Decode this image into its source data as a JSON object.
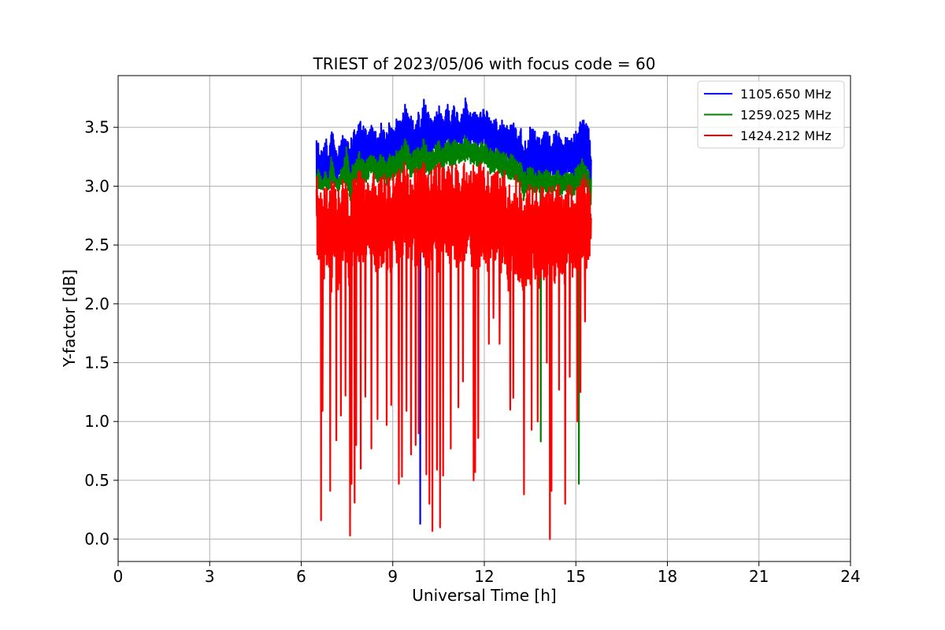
{
  "chart_data": {
    "type": "line",
    "title": "TRIEST of 2023/05/06 with focus code = 60",
    "xlabel": "Universal Time [h]",
    "ylabel": "Y-factor [dB]",
    "xlim": [
      0,
      24
    ],
    "ylim": [
      -0.19,
      3.94
    ],
    "xticks": [
      0,
      3,
      6,
      9,
      12,
      15,
      18,
      21,
      24
    ],
    "yticks": [
      0.0,
      0.5,
      1.0,
      1.5,
      2.0,
      2.5,
      3.0,
      3.5
    ],
    "ytick_labels": [
      "0.0",
      "0.5",
      "1.0",
      "1.5",
      "2.0",
      "2.5",
      "3.0",
      "3.5"
    ],
    "grid": true,
    "legend_position": "top-right",
    "series": [
      {
        "name": "1105.650 MHz",
        "color": "#0000ff",
        "x": [
          6.5,
          6.55,
          6.62,
          6.7,
          6.8,
          6.9,
          7.0,
          7.1,
          7.2,
          7.3,
          7.4,
          7.5,
          7.6,
          7.7,
          7.8,
          7.9,
          8.0,
          8.1,
          8.2,
          8.3,
          8.4,
          8.5,
          8.6,
          8.7,
          8.8,
          8.9,
          9.0,
          9.1,
          9.2,
          9.3,
          9.4,
          9.5,
          9.6,
          9.7,
          9.8,
          9.9,
          10.0,
          10.1,
          10.2,
          10.3,
          10.4,
          10.5,
          10.6,
          10.7,
          10.8,
          10.9,
          11.0,
          11.1,
          11.2,
          11.3,
          11.4,
          11.5,
          11.6,
          11.7,
          11.8,
          11.9,
          12.0,
          12.1,
          12.2,
          12.3,
          12.4,
          12.5,
          12.6,
          12.7,
          12.8,
          12.9,
          13.0,
          13.1,
          13.2,
          13.3,
          13.4,
          13.5,
          13.6,
          13.7,
          13.8,
          13.9,
          14.0,
          14.1,
          14.2,
          14.3,
          14.4,
          14.5,
          14.6,
          14.7,
          14.8,
          14.9,
          15.0,
          15.1,
          15.2,
          15.3,
          15.4,
          15.5
        ],
        "y_high": [
          3.55,
          3.4,
          3.35,
          3.3,
          3.45,
          3.3,
          3.62,
          3.35,
          3.3,
          3.4,
          3.45,
          3.4,
          3.35,
          3.5,
          3.55,
          3.58,
          3.55,
          3.5,
          3.45,
          3.55,
          3.5,
          3.45,
          3.55,
          3.5,
          3.5,
          3.55,
          3.5,
          3.6,
          3.55,
          3.65,
          3.7,
          3.68,
          3.6,
          3.55,
          3.65,
          3.6,
          3.75,
          3.7,
          3.6,
          3.55,
          3.6,
          3.7,
          3.65,
          3.6,
          3.75,
          3.6,
          3.7,
          3.65,
          3.6,
          3.7,
          3.76,
          3.65,
          3.6,
          3.7,
          3.6,
          3.65,
          3.7,
          3.65,
          3.6,
          3.55,
          3.6,
          3.55,
          3.6,
          3.55,
          3.5,
          3.55,
          3.55,
          3.5,
          3.5,
          3.4,
          3.45,
          3.5,
          3.5,
          3.45,
          3.45,
          3.4,
          3.5,
          3.45,
          3.4,
          3.45,
          3.5,
          3.4,
          3.4,
          3.45,
          3.4,
          3.45,
          3.5,
          3.55,
          3.55,
          3.6,
          3.5,
          3.45
        ],
        "y_low": [
          2.85,
          2.9,
          2.95,
          3.0,
          3.05,
          3.0,
          2.95,
          3.05,
          3.0,
          3.1,
          3.05,
          3.0,
          2.9,
          3.0,
          3.05,
          3.1,
          3.1,
          3.05,
          3.1,
          3.15,
          3.1,
          3.05,
          3.15,
          3.1,
          3.05,
          3.15,
          3.1,
          3.2,
          3.15,
          3.2,
          3.25,
          3.2,
          3.15,
          3.2,
          3.25,
          3.2,
          3.3,
          3.25,
          3.2,
          3.25,
          3.3,
          3.25,
          3.2,
          3.3,
          3.35,
          3.25,
          3.3,
          3.35,
          3.3,
          3.35,
          3.4,
          3.35,
          3.3,
          3.35,
          3.3,
          3.25,
          3.3,
          3.25,
          3.2,
          3.2,
          3.25,
          3.2,
          3.15,
          3.2,
          3.15,
          3.1,
          3.15,
          3.1,
          3.05,
          2.9,
          3.0,
          3.05,
          3.0,
          3.05,
          3.05,
          3.0,
          3.05,
          3.0,
          3.05,
          3.1,
          3.05,
          3.0,
          3.05,
          3.1,
          3.05,
          3.0,
          3.05,
          3.1,
          3.05,
          3.1,
          3.05,
          2.8
        ],
        "spikes": [
          [
            9.9,
            0.13
          ]
        ]
      },
      {
        "name": "1259.025 MHz",
        "color": "#008000",
        "x": [
          6.5,
          6.55,
          6.62,
          6.7,
          6.8,
          6.9,
          7.0,
          7.1,
          7.2,
          7.3,
          7.4,
          7.5,
          7.6,
          7.7,
          7.8,
          7.9,
          8.0,
          8.1,
          8.2,
          8.3,
          8.4,
          8.5,
          8.6,
          8.7,
          8.8,
          8.9,
          9.0,
          9.1,
          9.2,
          9.3,
          9.4,
          9.5,
          9.6,
          9.7,
          9.8,
          9.9,
          10.0,
          10.1,
          10.2,
          10.3,
          10.4,
          10.5,
          10.6,
          10.7,
          10.8,
          10.9,
          11.0,
          11.1,
          11.2,
          11.3,
          11.4,
          11.5,
          11.6,
          11.7,
          11.8,
          11.9,
          12.0,
          12.1,
          12.2,
          12.3,
          12.4,
          12.5,
          12.6,
          12.7,
          12.8,
          12.9,
          13.0,
          13.1,
          13.2,
          13.3,
          13.4,
          13.5,
          13.6,
          13.7,
          13.8,
          13.9,
          14.0,
          14.1,
          14.2,
          14.3,
          14.4,
          14.5,
          14.6,
          14.7,
          14.8,
          14.9,
          15.0,
          15.1,
          15.2,
          15.3,
          15.4,
          15.5
        ],
        "y_high": [
          3.2,
          3.15,
          3.1,
          3.05,
          3.15,
          3.05,
          3.3,
          3.1,
          3.05,
          3.15,
          3.2,
          3.4,
          3.1,
          3.2,
          3.25,
          3.3,
          3.25,
          3.2,
          3.25,
          3.3,
          3.25,
          3.2,
          3.3,
          3.25,
          3.2,
          3.3,
          3.25,
          3.3,
          3.3,
          3.35,
          3.4,
          3.35,
          3.3,
          3.3,
          3.35,
          3.3,
          3.4,
          3.35,
          3.3,
          3.3,
          3.35,
          3.4,
          3.35,
          3.35,
          3.42,
          3.35,
          3.4,
          3.38,
          3.35,
          3.4,
          3.45,
          3.4,
          3.35,
          3.4,
          3.35,
          3.38,
          3.4,
          3.35,
          3.32,
          3.3,
          3.32,
          3.3,
          3.3,
          3.28,
          3.25,
          3.28,
          3.25,
          3.2,
          3.2,
          3.1,
          3.15,
          3.2,
          3.15,
          3.1,
          3.15,
          3.1,
          3.15,
          3.12,
          3.1,
          3.12,
          3.15,
          3.1,
          3.1,
          3.12,
          3.1,
          3.12,
          3.15,
          3.2,
          3.25,
          3.2,
          3.15,
          3.1
        ],
        "y_low": [
          2.9,
          2.95,
          2.95,
          2.95,
          3.0,
          2.95,
          3.0,
          3.0,
          2.95,
          3.0,
          3.0,
          2.95,
          2.85,
          2.95,
          3.0,
          3.05,
          3.05,
          3.0,
          3.05,
          3.1,
          3.05,
          3.0,
          3.05,
          3.05,
          3.0,
          3.05,
          3.05,
          3.1,
          3.05,
          3.1,
          3.15,
          3.1,
          3.05,
          3.1,
          3.1,
          3.1,
          3.15,
          3.1,
          3.1,
          3.1,
          3.15,
          3.15,
          3.1,
          3.15,
          3.2,
          3.15,
          3.15,
          3.2,
          3.15,
          3.2,
          3.2,
          3.2,
          3.15,
          3.2,
          3.15,
          3.15,
          3.15,
          3.15,
          3.1,
          3.1,
          3.1,
          3.1,
          3.05,
          3.1,
          3.05,
          3.05,
          3.05,
          3.0,
          3.0,
          2.85,
          2.95,
          2.95,
          2.9,
          2.95,
          2.95,
          2.9,
          2.95,
          2.9,
          2.95,
          2.95,
          2.95,
          2.9,
          2.95,
          2.95,
          2.9,
          2.9,
          2.95,
          3.0,
          2.95,
          3.0,
          2.95,
          2.75
        ],
        "spikes": [
          [
            13.85,
            0.83
          ],
          [
            15.1,
            0.47
          ]
        ]
      },
      {
        "name": "1424.212 MHz",
        "color": "#ff0000",
        "x": [
          6.5,
          6.55,
          6.62,
          6.7,
          6.8,
          6.9,
          7.0,
          7.1,
          7.2,
          7.3,
          7.4,
          7.5,
          7.6,
          7.7,
          7.8,
          7.9,
          8.0,
          8.1,
          8.2,
          8.3,
          8.4,
          8.5,
          8.6,
          8.7,
          8.8,
          8.9,
          9.0,
          9.1,
          9.2,
          9.3,
          9.4,
          9.5,
          9.6,
          9.7,
          9.8,
          9.9,
          10.0,
          10.1,
          10.2,
          10.3,
          10.4,
          10.5,
          10.6,
          10.7,
          10.8,
          10.9,
          11.0,
          11.1,
          11.2,
          11.3,
          11.4,
          11.5,
          11.6,
          11.7,
          11.8,
          11.9,
          12.0,
          12.1,
          12.2,
          12.3,
          12.4,
          12.5,
          12.6,
          12.7,
          12.8,
          12.9,
          13.0,
          13.1,
          13.2,
          13.3,
          13.4,
          13.5,
          13.6,
          13.7,
          13.8,
          13.9,
          14.0,
          14.1,
          14.2,
          14.3,
          14.4,
          14.5,
          14.6,
          14.7,
          14.8,
          14.9,
          15.0,
          15.1,
          15.2,
          15.3,
          15.4,
          15.5
        ],
        "y_high": [
          3.1,
          3.05,
          3.0,
          2.95,
          3.05,
          2.95,
          3.15,
          3.0,
          2.95,
          3.05,
          3.1,
          3.0,
          2.9,
          3.05,
          3.1,
          3.15,
          3.1,
          3.1,
          3.15,
          3.15,
          3.1,
          3.05,
          3.1,
          3.15,
          3.1,
          3.1,
          3.15,
          3.15,
          3.15,
          3.2,
          3.2,
          3.15,
          3.15,
          3.15,
          3.2,
          3.15,
          3.2,
          3.2,
          3.15,
          3.15,
          3.2,
          3.2,
          3.2,
          3.2,
          3.25,
          3.2,
          3.2,
          3.2,
          3.2,
          3.2,
          3.25,
          3.2,
          3.2,
          3.2,
          3.2,
          3.2,
          3.2,
          3.15,
          3.15,
          3.15,
          3.15,
          3.15,
          3.15,
          3.15,
          3.1,
          3.1,
          3.1,
          3.1,
          3.05,
          2.95,
          3.0,
          3.05,
          3.0,
          3.0,
          3.05,
          3.0,
          3.05,
          3.0,
          3.0,
          3.05,
          3.05,
          3.0,
          3.0,
          3.05,
          3.0,
          3.0,
          3.05,
          3.1,
          3.1,
          3.1,
          3.05,
          2.9
        ],
        "y_low": [
          2.7,
          2.2,
          2.4,
          2.1,
          2.3,
          2.2,
          2.05,
          2.3,
          2.1,
          2.2,
          2.4,
          2.3,
          2.0,
          2.3,
          2.2,
          2.35,
          2.3,
          2.1,
          2.4,
          2.35,
          2.2,
          2.3,
          2.25,
          2.35,
          2.3,
          2.2,
          2.35,
          2.3,
          2.2,
          2.35,
          2.4,
          2.2,
          2.3,
          2.35,
          2.25,
          2.3,
          2.4,
          2.2,
          2.35,
          2.3,
          2.4,
          2.2,
          2.35,
          2.4,
          2.3,
          2.35,
          2.4,
          2.3,
          2.35,
          2.3,
          2.4,
          2.35,
          2.3,
          2.35,
          2.25,
          2.3,
          2.35,
          2.25,
          2.3,
          2.2,
          2.3,
          2.2,
          2.25,
          2.2,
          2.1,
          2.2,
          2.15,
          2.1,
          2.2,
          2.0,
          2.2,
          2.1,
          2.2,
          2.15,
          2.1,
          2.2,
          2.15,
          2.1,
          2.2,
          2.15,
          2.1,
          2.2,
          2.15,
          2.2,
          2.25,
          2.2,
          2.3,
          2.25,
          2.3,
          2.25,
          2.3,
          2.4
        ],
        "spikes": [
          [
            6.65,
            0.16
          ],
          [
            6.7,
            1.09
          ],
          [
            6.95,
            0.41
          ],
          [
            7.15,
            0.84
          ],
          [
            7.3,
            1.05
          ],
          [
            7.45,
            1.22
          ],
          [
            7.6,
            0.03
          ],
          [
            7.65,
            0.47
          ],
          [
            7.75,
            0.31
          ],
          [
            7.8,
            0.8
          ],
          [
            7.95,
            0.6
          ],
          [
            8.1,
            1.21
          ],
          [
            8.3,
            0.77
          ],
          [
            8.5,
            1.02
          ],
          [
            8.8,
            0.97
          ],
          [
            8.95,
            1.14
          ],
          [
            9.2,
            0.47
          ],
          [
            9.3,
            0.53
          ],
          [
            9.45,
            1.09
          ],
          [
            9.6,
            0.72
          ],
          [
            9.75,
            0.8
          ],
          [
            9.85,
            0.9
          ],
          [
            10.1,
            0.55
          ],
          [
            10.2,
            0.3
          ],
          [
            10.3,
            0.07
          ],
          [
            10.45,
            0.59
          ],
          [
            10.55,
            0.1
          ],
          [
            10.65,
            0.54
          ],
          [
            10.9,
            0.77
          ],
          [
            11.15,
            1.12
          ],
          [
            11.3,
            1.34
          ],
          [
            11.65,
            0.5
          ],
          [
            11.7,
            0.57
          ],
          [
            11.8,
            0.86
          ],
          [
            12.15,
            1.66
          ],
          [
            12.3,
            1.88
          ],
          [
            12.5,
            1.66
          ],
          [
            12.85,
            1.1
          ],
          [
            12.95,
            1.2
          ],
          [
            13.3,
            0.38
          ],
          [
            13.55,
            0.93
          ],
          [
            13.75,
            1.0
          ],
          [
            14.05,
            1.5
          ],
          [
            14.15,
            0.0
          ],
          [
            14.2,
            0.41
          ],
          [
            14.45,
            1.27
          ],
          [
            14.65,
            0.3
          ],
          [
            14.8,
            1.38
          ],
          [
            15.05,
            1.0
          ],
          [
            15.15,
            1.25
          ],
          [
            15.3,
            1.85
          ]
        ]
      }
    ]
  }
}
